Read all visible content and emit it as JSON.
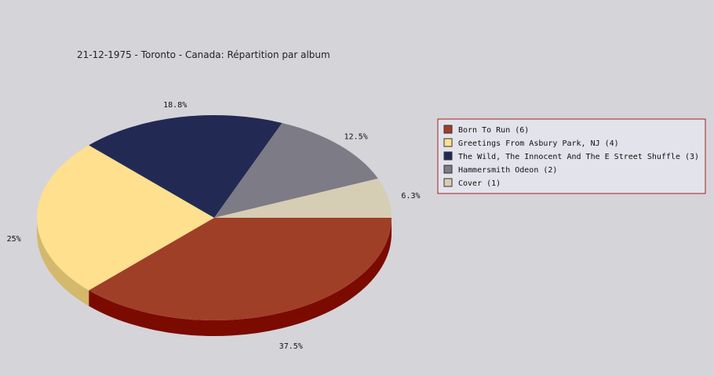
{
  "chart_data": {
    "type": "pie",
    "title": "21-12-1975 - Toronto - Canada:  Répartition par album",
    "slices": [
      {
        "label": "Born To Run (6)",
        "value": 6,
        "percent_label": "37.5%",
        "color": "#a03f28",
        "side_color": "#7b0a00"
      },
      {
        "label": "Greetings From Asbury Park, NJ (4)",
        "value": 4,
        "percent_label": "25%",
        "color": "#fee08f",
        "side_color": "#d4b86c"
      },
      {
        "label": "The Wild, The Innocent And The E Street Shuffle (3)",
        "value": 3,
        "percent_label": "18.8%",
        "color": "#222a54",
        "side_color": "#141a3a"
      },
      {
        "label": "Hammersmith Odeon  (2)",
        "value": 2,
        "percent_label": "12.5%",
        "color": "#7c7b86",
        "side_color": "#5a5962"
      },
      {
        "label": "Cover (1)",
        "value": 1,
        "percent_label": "6.3%",
        "color": "#d6cdb5",
        "side_color": "#b3aa93"
      }
    ],
    "legend_position": "right",
    "style": "3d"
  },
  "colors": {
    "background": "#d5d4d9",
    "legend_background": "#e3e3eb",
    "legend_border": "#a02222"
  }
}
